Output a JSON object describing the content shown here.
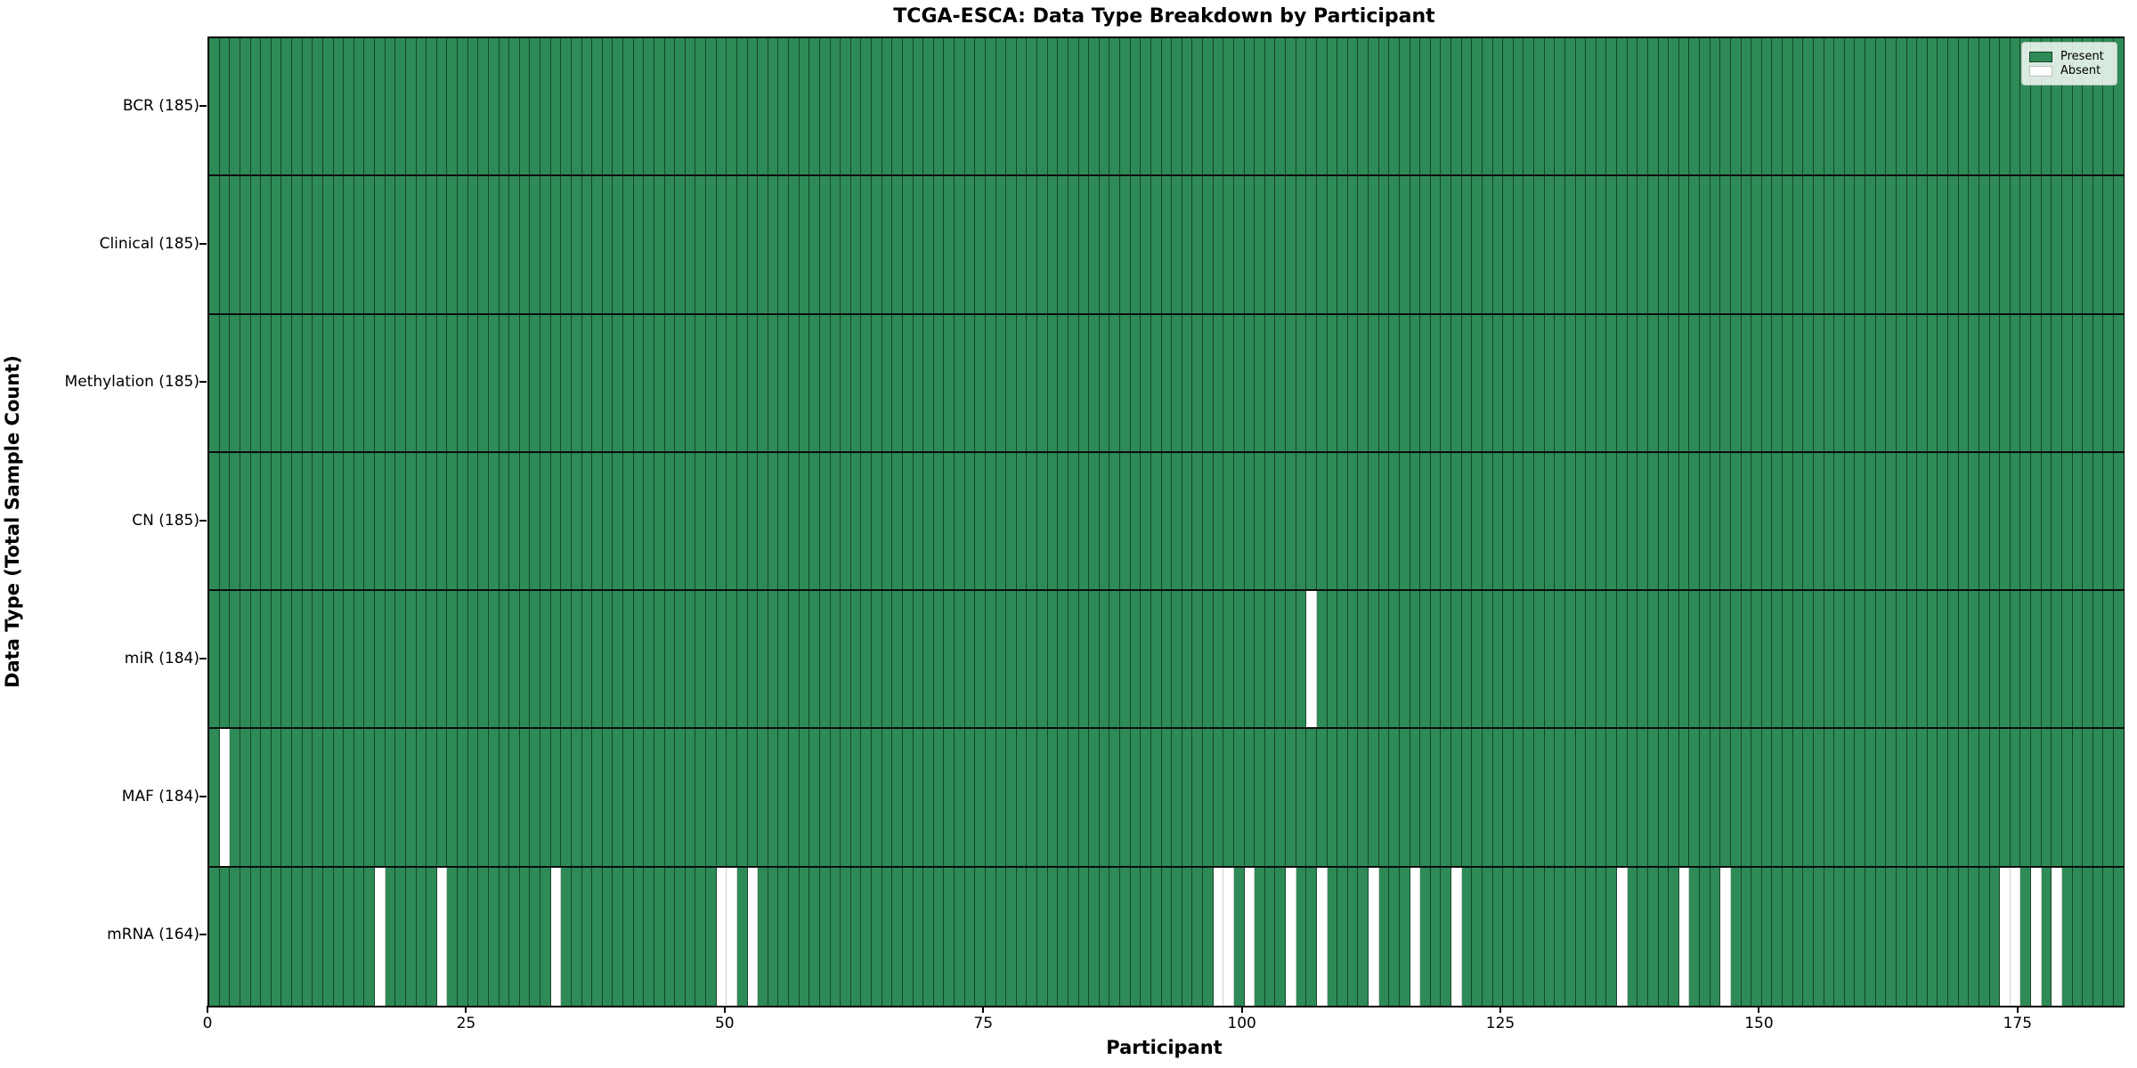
{
  "title": "TCGA-ESCA: Data Type Breakdown by Participant",
  "x_axis_label": "Participant",
  "y_axis_label": "Data Type (Total Sample Count)",
  "legend": {
    "present_label": "Present",
    "absent_label": "Absent"
  },
  "colors": {
    "present": "#2e8b57",
    "absent": "#ffffff"
  },
  "chart_data": {
    "type": "heatmap",
    "x_label": "Participant",
    "y_label": "Data Type (Total Sample Count)",
    "n_participants": 185,
    "x_range": [
      0,
      185
    ],
    "x_ticks": [
      0,
      25,
      50,
      75,
      100,
      125,
      150,
      175
    ],
    "legend_position": "upper right",
    "grid": true,
    "rows": [
      {
        "label": "BCR (185)",
        "name": "BCR",
        "present_count": 185,
        "absent_participants": []
      },
      {
        "label": "Clinical (185)",
        "name": "Clinical",
        "present_count": 185,
        "absent_participants": []
      },
      {
        "label": "Methylation (185)",
        "name": "Methylation",
        "present_count": 185,
        "absent_participants": []
      },
      {
        "label": "CN (185)",
        "name": "CN",
        "present_count": 185,
        "absent_participants": []
      },
      {
        "label": "miR (184)",
        "name": "miR",
        "present_count": 184,
        "absent_participants": [
          106
        ]
      },
      {
        "label": "MAF (184)",
        "name": "MAF",
        "present_count": 184,
        "absent_participants": [
          1
        ]
      },
      {
        "label": "mRNA (164)",
        "name": "mRNA",
        "present_count": 164,
        "absent_participants": [
          16,
          22,
          33,
          49,
          50,
          52,
          97,
          98,
          100,
          104,
          107,
          112,
          116,
          120,
          136,
          142,
          146,
          173,
          174,
          176,
          178
        ]
      }
    ]
  }
}
